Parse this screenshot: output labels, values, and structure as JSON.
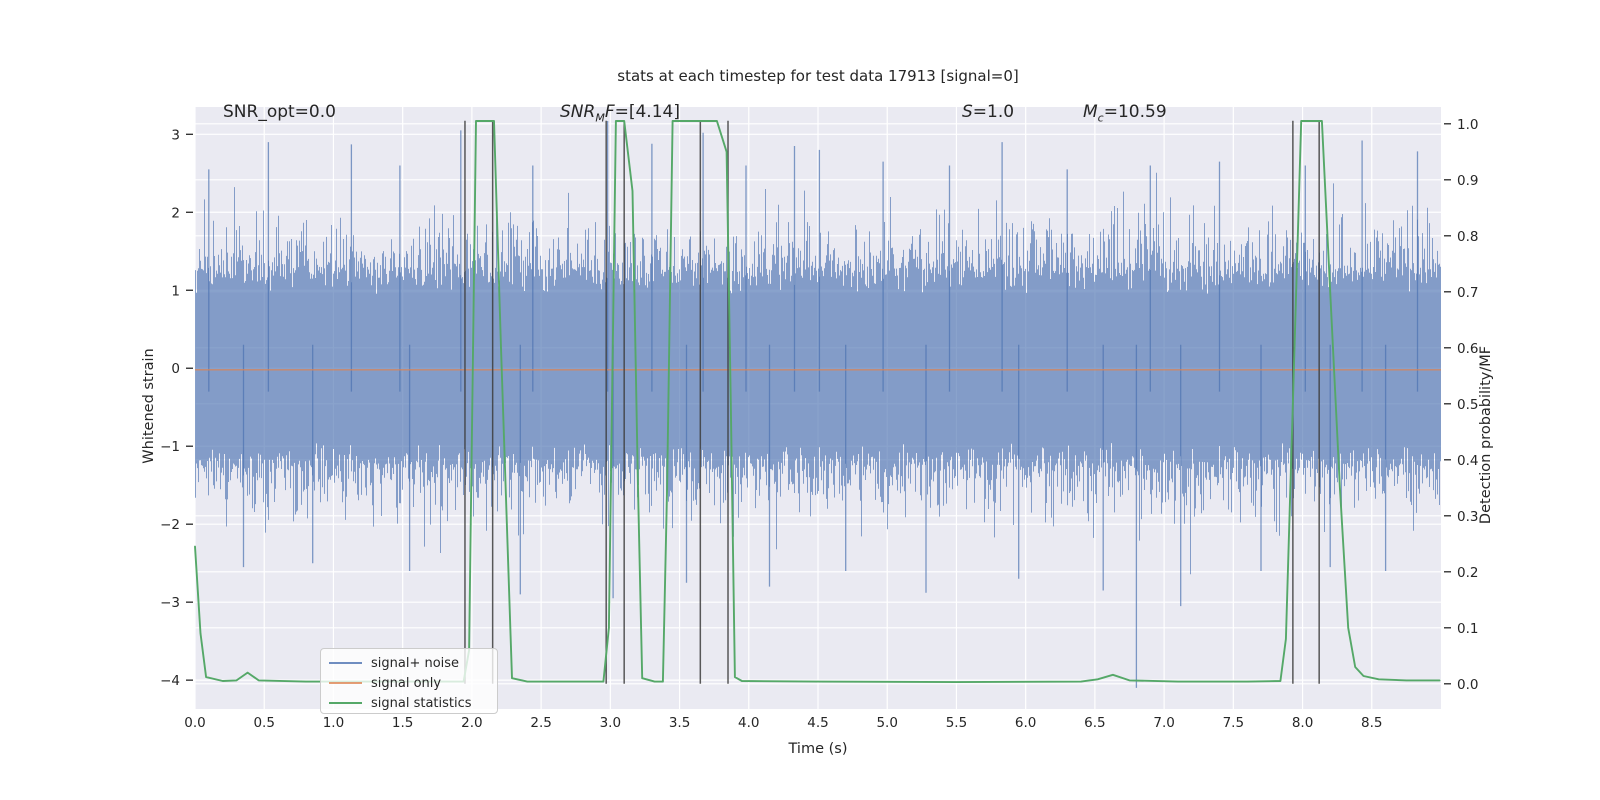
{
  "header": {
    "title": "stats at each timestep for test data 17913 [signal=0]"
  },
  "annotations": {
    "snr_opt": "SNR_opt=0.0",
    "snr_mf": {
      "pre": "SNR",
      "sub": "M",
      "mid": "F",
      "post": "=[4.14]"
    },
    "s": {
      "pre": "S",
      "post": "=1.0"
    },
    "mc": {
      "pre": "M",
      "sub": "c",
      "post": "=10.59"
    }
  },
  "legend": {
    "items": [
      {
        "label": "signal+ noise",
        "color": "rgba(76,114,176,0.8)"
      },
      {
        "label": "signal only",
        "color": "rgba(221,132,82,0.8)"
      },
      {
        "label": "signal statistics",
        "color": "#55a868"
      }
    ]
  },
  "chart_data": {
    "type": "line",
    "title": "stats at each timestep for test data 17913 [signal=0]",
    "xlabel": "Time (s)",
    "ylabel_left": "Whitened strain",
    "ylabel_right": "Detection probability/MF",
    "xlim": [
      0,
      9.0
    ],
    "ylim_left": [
      -4.37,
      3.35
    ],
    "ylim_right": [
      -0.045,
      1.03
    ],
    "grid": true,
    "legend_position": "lower left",
    "background": "#eaeaf2",
    "grid_color": "#ffffff",
    "text_color": "#262626",
    "x_ticks": [
      0,
      0.5,
      1,
      1.5,
      2,
      2.5,
      3,
      3.5,
      4,
      4.5,
      5,
      5.5,
      6,
      6.5,
      7,
      7.5,
      8,
      8.5
    ],
    "x_tick_labels": [
      "0.0",
      "0.5",
      "1.0",
      "1.5",
      "2.0",
      "2.5",
      "3.0",
      "3.5",
      "4.0",
      "4.5",
      "5.0",
      "5.5",
      "6.0",
      "6.5",
      "7.0",
      "7.5",
      "8.0",
      "8.5"
    ],
    "y_left_ticks": [
      3,
      2,
      1,
      0,
      -1,
      -2,
      -3,
      -4
    ],
    "y_left_labels": [
      "3",
      "2",
      "1",
      "0",
      "−1",
      "−2",
      "−3",
      "−4"
    ],
    "y_right_ticks": [
      1.0,
      0.9,
      0.8,
      0.7,
      0.6,
      0.5,
      0.4,
      0.3,
      0.2,
      0.1,
      0.0
    ],
    "y_right_labels": [
      "1.0",
      "0.9",
      "0.8",
      "0.7",
      "0.6",
      "0.5",
      "0.4",
      "0.3",
      "0.2",
      "0.1",
      "0.0"
    ],
    "series": [
      {
        "name": "signal+ noise",
        "kind": "noise",
        "axis": "left",
        "color": "#4c72b0",
        "opacity": 0.65,
        "sigma": 0.62,
        "draws_per_column": 40,
        "seed": 42,
        "core_band": [
          0.95,
          1.3
        ],
        "notable_spikes": [
          [
            0.1,
            2.55
          ],
          [
            0.53,
            2.9
          ],
          [
            1.13,
            2.87
          ],
          [
            1.48,
            2.6
          ],
          [
            1.92,
            3.05
          ],
          [
            2.44,
            2.6
          ],
          [
            2.98,
            3.17
          ],
          [
            3.3,
            2.88
          ],
          [
            3.67,
            3.02
          ],
          [
            3.98,
            2.6
          ],
          [
            4.33,
            2.85
          ],
          [
            4.51,
            2.8
          ],
          [
            4.97,
            2.65
          ],
          [
            5.45,
            2.6
          ],
          [
            5.83,
            2.9
          ],
          [
            6.3,
            2.55
          ],
          [
            6.9,
            2.6
          ],
          [
            7.4,
            2.65
          ],
          [
            8.02,
            2.6
          ],
          [
            8.43,
            2.92
          ],
          [
            8.83,
            2.78
          ],
          [
            0.35,
            -2.55
          ],
          [
            0.85,
            -2.5
          ],
          [
            1.55,
            -2.6
          ],
          [
            2.35,
            -2.9
          ],
          [
            3.02,
            -2.95
          ],
          [
            3.55,
            -2.75
          ],
          [
            4.15,
            -2.8
          ],
          [
            4.7,
            -2.6
          ],
          [
            5.28,
            -2.88
          ],
          [
            5.95,
            -2.7
          ],
          [
            6.56,
            -2.85
          ],
          [
            7.12,
            -3.05
          ],
          [
            7.7,
            -2.6
          ],
          [
            8.2,
            -2.55
          ],
          [
            8.6,
            -2.6
          ],
          [
            6.8,
            -4.1
          ]
        ]
      },
      {
        "name": "signal only",
        "kind": "constant",
        "axis": "left",
        "color": "#dd8452",
        "opacity": 0.8,
        "value": -0.02
      },
      {
        "name": "signal statistics",
        "kind": "line",
        "axis": "right",
        "color": "#55a868",
        "points": [
          [
            0,
            0.245
          ],
          [
            0.04,
            0.09
          ],
          [
            0.08,
            0.012
          ],
          [
            0.2,
            0.005
          ],
          [
            0.3,
            0.006
          ],
          [
            0.38,
            0.02
          ],
          [
            0.46,
            0.006
          ],
          [
            0.8,
            0.004
          ],
          [
            1.3,
            0.004
          ],
          [
            1.94,
            0.004
          ],
          [
            1.98,
            0.06
          ],
          [
            2.03,
            1.005
          ],
          [
            2.16,
            1.005
          ],
          [
            2.21,
            0.6
          ],
          [
            2.29,
            0.01
          ],
          [
            2.4,
            0.004
          ],
          [
            2.95,
            0.004
          ],
          [
            2.99,
            0.1
          ],
          [
            3.04,
            1.005
          ],
          [
            3.1,
            1.005
          ],
          [
            3.16,
            0.88
          ],
          [
            3.2,
            0.35
          ],
          [
            3.23,
            0.01
          ],
          [
            3.32,
            0.004
          ],
          [
            3.38,
            0.004
          ],
          [
            3.41,
            0.35
          ],
          [
            3.45,
            1.005
          ],
          [
            3.77,
            1.005
          ],
          [
            3.84,
            0.95
          ],
          [
            3.87,
            0.5
          ],
          [
            3.9,
            0.012
          ],
          [
            3.95,
            0.005
          ],
          [
            4.5,
            0.004
          ],
          [
            5.5,
            0.003
          ],
          [
            6.4,
            0.004
          ],
          [
            6.52,
            0.008
          ],
          [
            6.63,
            0.016
          ],
          [
            6.75,
            0.006
          ],
          [
            7.1,
            0.004
          ],
          [
            7.6,
            0.004
          ],
          [
            7.84,
            0.005
          ],
          [
            7.88,
            0.08
          ],
          [
            7.99,
            1.005
          ],
          [
            8.14,
            1.005
          ],
          [
            8.2,
            0.7
          ],
          [
            8.27,
            0.35
          ],
          [
            8.33,
            0.1
          ],
          [
            8.38,
            0.03
          ],
          [
            8.44,
            0.014
          ],
          [
            8.55,
            0.008
          ],
          [
            8.75,
            0.006
          ],
          [
            8.99,
            0.006
          ]
        ]
      }
    ],
    "event_vlines": {
      "color": "#3d3d3d",
      "opacity": 0.85,
      "axis": "right",
      "span": [
        0,
        1
      ],
      "times": [
        1.95,
        2.15,
        2.97,
        3.1,
        3.65,
        3.85,
        7.93,
        8.12
      ]
    }
  }
}
